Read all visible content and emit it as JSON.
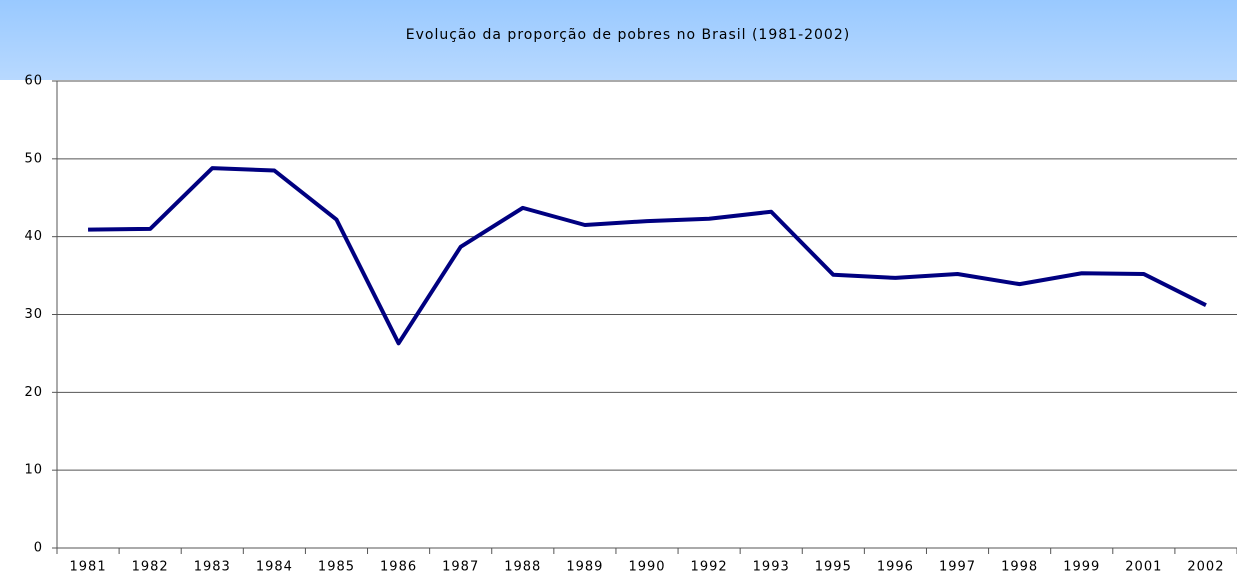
{
  "chart_data": {
    "type": "line",
    "title": "Evolução da proporção de pobres no Brasil (1981-2002)",
    "categories": [
      "1981",
      "1982",
      "1983",
      "1984",
      "1985",
      "1986",
      "1987",
      "1988",
      "1989",
      "1990",
      "1992",
      "1993",
      "1995",
      "1996",
      "1997",
      "1998",
      "1999",
      "2001",
      "2002"
    ],
    "series": [
      {
        "color": "#000080",
        "values": [
          40.9,
          41.0,
          48.8,
          48.5,
          42.2,
          26.3,
          38.7,
          43.7,
          41.5,
          42.0,
          42.3,
          43.2,
          35.1,
          34.7,
          35.2,
          33.9,
          35.3,
          35.2,
          31.2
        ]
      }
    ],
    "ylim": [
      0,
      60
    ],
    "yticks": [
      0,
      10,
      20,
      30,
      40,
      50,
      60
    ],
    "grid": true
  }
}
